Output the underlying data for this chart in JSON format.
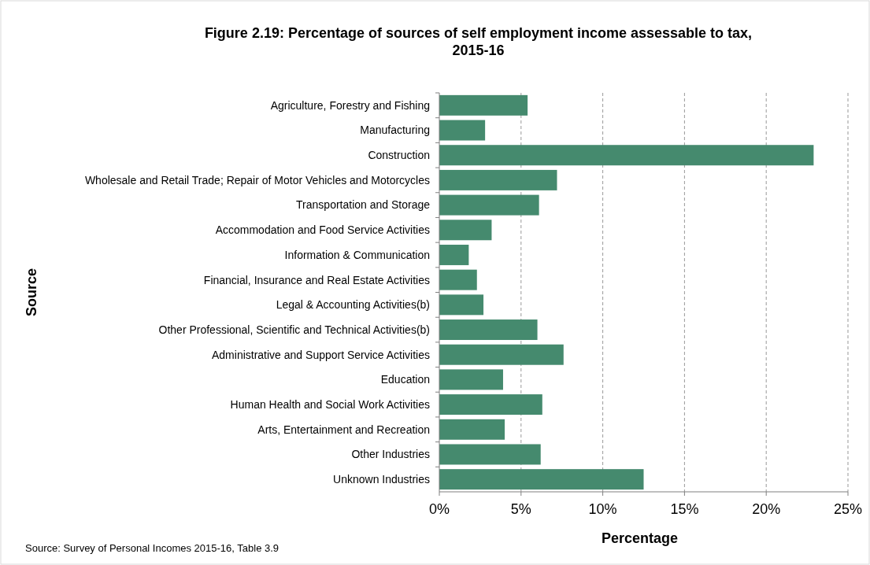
{
  "chart_data": {
    "type": "bar",
    "orientation": "horizontal",
    "title": "Figure 2.19: Percentage of sources of self employment income assessable to tax, 2015-16",
    "xlabel": "Percentage",
    "ylabel": "Source",
    "annotations": [
      "Source: Survey of Personal Incomes 2015-16, Table 3.9"
    ],
    "categories": [
      "Agriculture, Forestry and Fishing",
      "Manufacturing",
      "Construction",
      "Wholesale and Retail Trade; Repair of Motor Vehicles and Motorcycles",
      "Transportation and Storage",
      "Accommodation and Food Service Activities",
      "Information & Communication",
      "Financial, Insurance and Real Estate Activities",
      "Legal & Accounting Activities(b)",
      "Other Professional, Scientific and Technical Activities(b)",
      "Administrative and Support Service Activities",
      "Education",
      "Human Health and Social Work Activities",
      "Arts, Entertainment and Recreation",
      "Other Industries",
      "Unknown Industries"
    ],
    "values": [
      5.4,
      2.8,
      22.9,
      7.2,
      6.1,
      3.2,
      1.8,
      2.3,
      2.7,
      6.0,
      7.6,
      3.9,
      6.3,
      4.0,
      6.2,
      12.5
    ],
    "color": "#458a6e",
    "xlim": [
      0,
      25
    ],
    "xticks": [
      {
        "value": 0,
        "label": "0%"
      },
      {
        "value": 5,
        "label": "5%"
      },
      {
        "value": 10,
        "label": "10%"
      },
      {
        "value": 15,
        "label": "15%"
      },
      {
        "value": 20,
        "label": "20%"
      },
      {
        "value": 25,
        "label": "25%"
      }
    ],
    "grid": "x"
  }
}
